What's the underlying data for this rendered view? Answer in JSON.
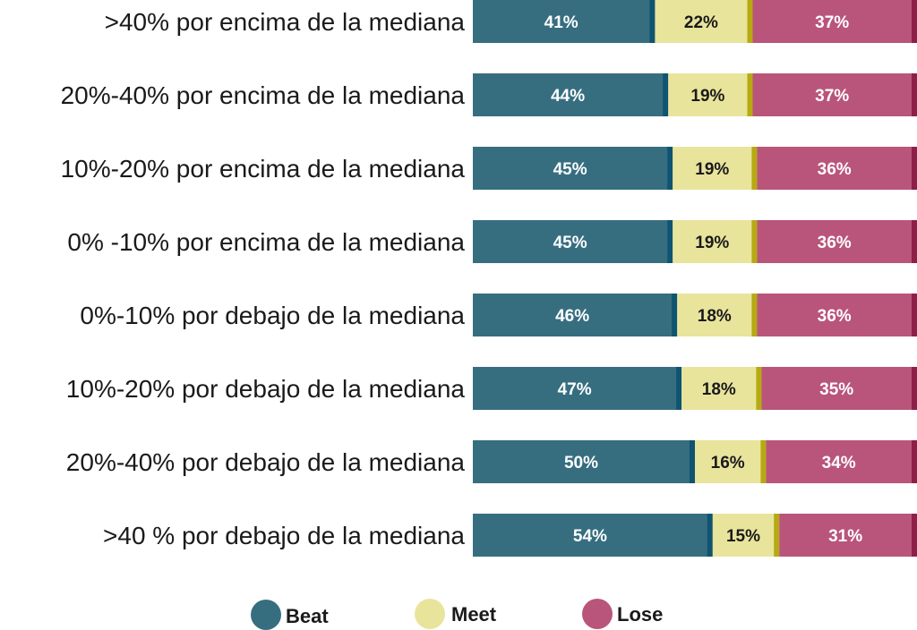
{
  "chart_data": {
    "type": "bar",
    "orientation": "horizontal",
    "stacked": "percent",
    "categories": [
      ">40% por encima de la mediana",
      "20%-40% por encima de la mediana",
      "10%-20% por encima de la mediana",
      "0% -10% por encima de la mediana",
      "0%-10% por debajo de la mediana",
      "10%-20% por debajo de la mediana",
      "20%-40% por debajo de la mediana",
      ">40 % por debajo de la mediana"
    ],
    "series": [
      {
        "name": "Beat",
        "color": "#366e80",
        "edge_color": "#0f5470",
        "text_color": "#ffffff",
        "values": [
          41,
          44,
          45,
          45,
          46,
          47,
          50,
          54
        ],
        "labels": [
          "41%",
          "44%",
          "45%",
          "45%",
          "46%",
          "47%",
          "50%",
          "54%"
        ]
      },
      {
        "name": "Meet",
        "color": "#e9e49c",
        "edge_color": "#b5aa12",
        "text_color": "#1a1a1a",
        "values": [
          22,
          19,
          19,
          19,
          18,
          18,
          16,
          15
        ],
        "labels": [
          "22%",
          "19%",
          "19%",
          "19%",
          "18%",
          "18%",
          "16%",
          "15%"
        ]
      },
      {
        "name": "Lose",
        "color": "#b9557a",
        "edge_color": "#8e1f48",
        "text_color": "#ffffff",
        "values": [
          37,
          37,
          36,
          36,
          36,
          35,
          34,
          31
        ],
        "labels": [
          "37%",
          "37%",
          "36%",
          "36%",
          "36%",
          "35%",
          "34%",
          "31%"
        ]
      }
    ],
    "xlim": [
      0,
      100
    ],
    "grid": false,
    "legend_position": "bottom"
  }
}
